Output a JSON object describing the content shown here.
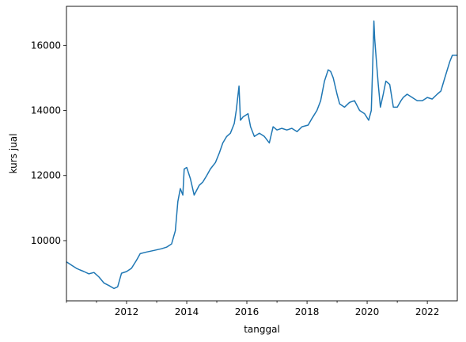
{
  "chart_data": {
    "type": "line",
    "title": "",
    "xlabel": "tanggal",
    "ylabel": "kurs jual",
    "xlim": [
      "2010-01-01",
      "2022-12-31"
    ],
    "ylim": [
      8150,
      17200
    ],
    "x_ticks": [
      "2012",
      "2014",
      "2016",
      "2018",
      "2020",
      "2022"
    ],
    "y_ticks": [
      10000,
      12000,
      14000,
      16000
    ],
    "grid": false,
    "legend": "none",
    "colors": {
      "line": "#1f77b4",
      "axes": "#000000"
    },
    "series": [
      {
        "x": [
          "2010-01-01",
          "2010-03-01",
          "2010-05-01",
          "2010-06-15",
          "2010-08-01",
          "2010-10-01",
          "2010-12-01",
          "2011-02-01",
          "2011-04-01",
          "2011-06-01",
          "2011-08-01",
          "2011-09-15",
          "2011-11-01",
          "2012-01-01",
          "2012-03-01",
          "2012-05-01",
          "2012-06-15",
          "2012-09-01",
          "2012-12-01",
          "2013-03-01",
          "2013-05-01",
          "2013-07-01",
          "2013-08-15",
          "2013-09-15",
          "2013-10-15",
          "2013-11-15",
          "2013-12-01",
          "2014-01-01",
          "2014-02-15",
          "2014-04-01",
          "2014-06-01",
          "2014-07-15",
          "2014-09-01",
          "2014-10-15",
          "2014-12-15",
          "2015-02-01",
          "2015-03-15",
          "2015-05-01",
          "2015-06-15",
          "2015-08-01",
          "2015-08-25",
          "2015-09-28",
          "2015-10-15",
          "2015-11-15",
          "2016-01-15",
          "2016-02-15",
          "2016-04-01",
          "2016-06-01",
          "2016-08-01",
          "2016-09-30",
          "2016-11-15",
          "2017-01-01",
          "2017-03-01",
          "2017-05-01",
          "2017-07-01",
          "2017-09-01",
          "2017-11-01",
          "2018-01-15",
          "2018-03-01",
          "2018-05-01",
          "2018-06-15",
          "2018-08-01",
          "2018-09-15",
          "2018-10-15",
          "2018-11-15",
          "2018-12-31",
          "2019-02-01",
          "2019-04-01",
          "2019-06-01",
          "2019-08-01",
          "2019-10-01",
          "2019-12-01",
          "2020-01-20",
          "2020-02-20",
          "2020-03-10",
          "2020-03-23",
          "2020-04-02",
          "2020-04-20",
          "2020-05-15",
          "2020-06-10",
          "2020-07-15",
          "2020-08-15",
          "2020-10-01",
          "2020-11-15",
          "2021-01-01",
          "2021-02-15",
          "2021-03-15",
          "2021-05-01",
          "2021-07-01",
          "2021-09-01",
          "2021-11-01",
          "2022-01-01",
          "2022-03-01",
          "2022-05-01",
          "2022-06-15",
          "2022-08-01",
          "2022-10-01",
          "2022-11-01",
          "2022-12-31"
        ],
        "y": [
          9350,
          9250,
          9150,
          9100,
          9050,
          8980,
          9020,
          8880,
          8700,
          8620,
          8530,
          8580,
          9000,
          9050,
          9150,
          9400,
          9600,
          9650,
          9700,
          9750,
          9800,
          9900,
          10300,
          11200,
          11600,
          11400,
          12200,
          12250,
          11900,
          11400,
          11700,
          11800,
          12000,
          12200,
          12400,
          12700,
          13000,
          13200,
          13300,
          13600,
          14000,
          14750,
          13700,
          13800,
          13900,
          13500,
          13200,
          13300,
          13200,
          13000,
          13500,
          13400,
          13450,
          13400,
          13450,
          13350,
          13500,
          13550,
          13750,
          14000,
          14300,
          14900,
          15250,
          15200,
          15000,
          14500,
          14200,
          14100,
          14250,
          14300,
          14000,
          13900,
          13700,
          14000,
          15500,
          16750,
          16200,
          15600,
          14800,
          14100,
          14500,
          14900,
          14800,
          14100,
          14100,
          14300,
          14400,
          14500,
          14400,
          14300,
          14300,
          14400,
          14350,
          14500,
          14600,
          15000,
          15500,
          15700,
          15700
        ]
      }
    ]
  }
}
